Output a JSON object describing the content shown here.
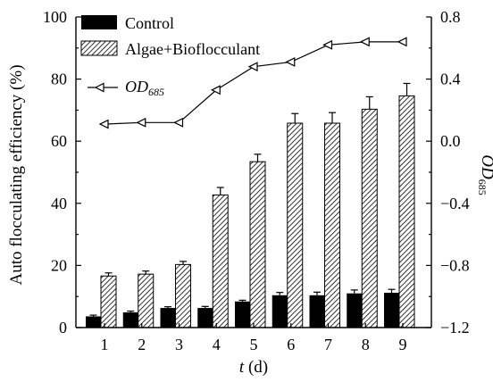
{
  "chart_data": {
    "type": "bar",
    "xlabel_var": "t",
    "xlabel_unit": " (d)",
    "ylabel": "Auto flocculating efficiency (%)",
    "y2label_main": "OD",
    "y2label_sub": "685",
    "categories": [
      "1",
      "2",
      "3",
      "4",
      "5",
      "6",
      "7",
      "8",
      "9"
    ],
    "ylim": [
      0,
      100
    ],
    "yticks": [
      "0",
      "20",
      "40",
      "60",
      "80",
      "100"
    ],
    "y2lim": [
      -1.2,
      0.8
    ],
    "y2ticks": [
      "−1.2",
      "−0.8",
      "−0.4",
      "0.0",
      "0.4",
      "0.8"
    ],
    "legend_position": "top-left",
    "series": [
      {
        "name": "Control",
        "kind": "bar",
        "fill": "#000000",
        "values": [
          3.6,
          4.9,
          6.3,
          6.3,
          8.4,
          10.4,
          10.4,
          11.0,
          11.2
        ],
        "errors": [
          0.4,
          0.4,
          0.4,
          0.5,
          0.4,
          0.9,
          1.0,
          1.1,
          1.1
        ]
      },
      {
        "name": "Algae+Bioflocculant",
        "kind": "bar",
        "fill": "hatched",
        "values": [
          16.6,
          17.2,
          20.3,
          42.7,
          53.4,
          65.8,
          65.8,
          70.3,
          74.6
        ],
        "errors": [
          1.0,
          1.0,
          1.0,
          2.4,
          2.4,
          3.1,
          3.4,
          4.0,
          4.0
        ]
      },
      {
        "name_main": "OD",
        "name_sub": "685",
        "kind": "line",
        "axis": "right",
        "values": [
          0.11,
          0.12,
          0.12,
          0.33,
          0.48,
          0.51,
          0.62,
          0.64,
          0.64
        ]
      }
    ]
  }
}
